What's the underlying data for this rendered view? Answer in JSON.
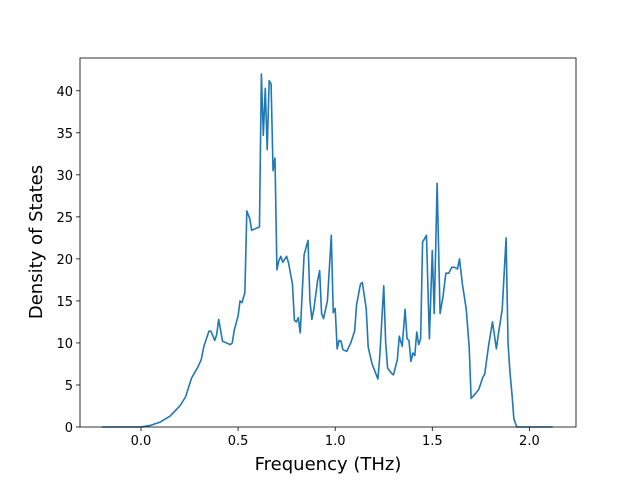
{
  "chart_data": {
    "type": "line",
    "x_label": "Frequency (THz)",
    "y_label": "Density of States",
    "color": "#1f77b4",
    "x": [
      -0.2,
      0.0,
      0.05,
      0.1,
      0.15,
      0.2,
      0.23,
      0.26,
      0.29,
      0.31,
      0.325,
      0.35,
      0.36,
      0.38,
      0.39,
      0.4,
      0.42,
      0.44,
      0.46,
      0.47,
      0.48,
      0.5,
      0.51,
      0.52,
      0.535,
      0.545,
      0.56,
      0.57,
      0.61,
      0.62,
      0.63,
      0.64,
      0.65,
      0.66,
      0.67,
      0.68,
      0.69,
      0.7,
      0.71,
      0.72,
      0.73,
      0.75,
      0.76,
      0.78,
      0.79,
      0.8,
      0.81,
      0.82,
      0.84,
      0.86,
      0.87,
      0.88,
      0.89,
      0.91,
      0.92,
      0.93,
      0.94,
      0.96,
      0.98,
      0.99,
      1.0,
      1.01,
      1.02,
      1.03,
      1.04,
      1.06,
      1.08,
      1.1,
      1.11,
      1.13,
      1.14,
      1.16,
      1.17,
      1.19,
      1.22,
      1.23,
      1.25,
      1.26,
      1.27,
      1.29,
      1.3,
      1.32,
      1.33,
      1.345,
      1.36,
      1.37,
      1.38,
      1.39,
      1.4,
      1.41,
      1.42,
      1.43,
      1.44,
      1.45,
      1.47,
      1.485,
      1.5,
      1.51,
      1.525,
      1.54,
      1.555,
      1.57,
      1.585,
      1.6,
      1.615,
      1.63,
      1.64,
      1.655,
      1.675,
      1.69,
      1.7,
      1.72,
      1.74,
      1.76,
      1.77,
      1.79,
      1.81,
      1.83,
      1.84,
      1.86,
      1.88,
      1.89,
      1.9,
      1.91,
      1.92,
      1.935,
      2.0,
      2.12
    ],
    "values": [
      0,
      0,
      0.2,
      0.6,
      1.3,
      2.5,
      3.6,
      5.8,
      7,
      8,
      9.7,
      11.4,
      11.4,
      10.3,
      11,
      12.8,
      10.2,
      10,
      9.8,
      10,
      11.5,
      13.2,
      15,
      14.8,
      16,
      25.7,
      24.8,
      23.4,
      23.8,
      42,
      34.7,
      40.3,
      33,
      41.2,
      40.8,
      30.5,
      32,
      18.7,
      19.8,
      20.3,
      19.6,
      20.3,
      19.5,
      17,
      12.7,
      12.5,
      13,
      11.2,
      20.5,
      22.2,
      15,
      12.8,
      14,
      17.5,
      18.6,
      13.5,
      12.9,
      15,
      22.8,
      13.6,
      14.1,
      9.3,
      10.3,
      10.2,
      9.2,
      9,
      10,
      11.4,
      14.5,
      17,
      17.2,
      14,
      9.5,
      7.5,
      5.7,
      8.5,
      16.8,
      10,
      7,
      6.4,
      6.2,
      8,
      10.8,
      9.6,
      14,
      10.5,
      10.3,
      7.8,
      8.8,
      8.5,
      11.3,
      9.8,
      10.5,
      22,
      22.8,
      10.5,
      21,
      13.5,
      29,
      13.5,
      15.5,
      18.3,
      18.3,
      19,
      19,
      18.8,
      20,
      17,
      14,
      9.5,
      3.4,
      3.9,
      4.5,
      5.9,
      6.3,
      9.7,
      12.5,
      9.3,
      11,
      14,
      22.5,
      10,
      6.5,
      4,
      1,
      0,
      0,
      0
    ],
    "xlim": [
      -0.314,
      2.24
    ],
    "ylim": [
      0,
      43.9
    ],
    "xticks": [
      {
        "value": 0,
        "label": "0.0"
      },
      0.5,
      {
        "value": 1,
        "label": "1.0"
      },
      1.5,
      {
        "value": 2,
        "label": "2.0"
      }
    ],
    "yticks": [
      0,
      5,
      10,
      15,
      20,
      25,
      30,
      35,
      40
    ]
  }
}
